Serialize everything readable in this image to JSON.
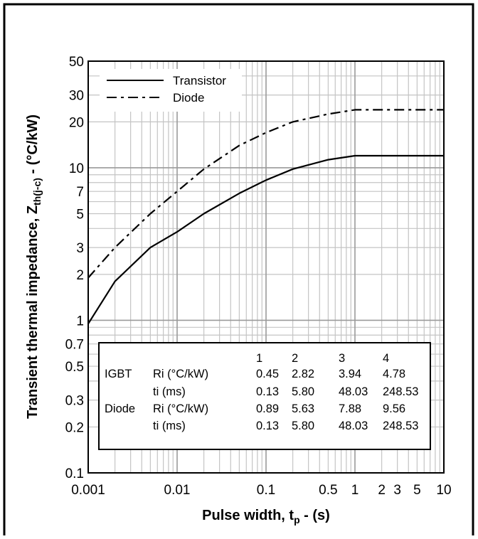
{
  "chart_data": {
    "type": "line",
    "xlabel": {
      "main": "Pulse width, t",
      "sub": "p",
      "tail": " - (s)"
    },
    "ylabel": {
      "main": "Transient thermal impedance, Z",
      "sub": "th(j-c)",
      "tail": " - (°C/kW)"
    },
    "x_scale": "log",
    "y_scale": "log",
    "xlim": [
      0.001,
      10
    ],
    "ylim": [
      0.1,
      50
    ],
    "grid": true,
    "x_ticks": [
      {
        "v": 0.001,
        "label": "0.001"
      },
      {
        "v": 0.01,
        "label": "0.01"
      },
      {
        "v": 0.1,
        "label": "0.1"
      },
      {
        "v": 0.5,
        "label": "0.5"
      },
      {
        "v": 1,
        "label": "1"
      },
      {
        "v": 2,
        "label": "2"
      },
      {
        "v": 3,
        "label": "3"
      },
      {
        "v": 5,
        "label": "5"
      },
      {
        "v": 10,
        "label": "10"
      }
    ],
    "y_ticks": [
      {
        "v": 0.1,
        "label": "0.1"
      },
      {
        "v": 0.2,
        "label": "0.2"
      },
      {
        "v": 0.3,
        "label": "0.3"
      },
      {
        "v": 0.5,
        "label": "0.5"
      },
      {
        "v": 0.7,
        "label": "0.7"
      },
      {
        "v": 1,
        "label": "1"
      },
      {
        "v": 2,
        "label": "2"
      },
      {
        "v": 3,
        "label": "3"
      },
      {
        "v": 5,
        "label": "5"
      },
      {
        "v": 7,
        "label": "7"
      },
      {
        "v": 10,
        "label": "10"
      },
      {
        "v": 20,
        "label": "20"
      },
      {
        "v": 30,
        "label": "30"
      },
      {
        "v": 50,
        "label": "50"
      }
    ],
    "legend_position": "top-left",
    "series": [
      {
        "name": "Transistor",
        "style": "solid",
        "x": [
          0.001,
          0.002,
          0.005,
          0.01,
          0.02,
          0.05,
          0.1,
          0.2,
          0.5,
          1,
          2,
          5,
          10
        ],
        "y": [
          0.95,
          1.8,
          3.0,
          3.8,
          5.0,
          6.8,
          8.3,
          9.8,
          11.3,
          12.0,
          12.0,
          12.0,
          12.0
        ]
      },
      {
        "name": "Diode",
        "style": "dashed",
        "x": [
          0.001,
          0.002,
          0.005,
          0.01,
          0.02,
          0.05,
          0.1,
          0.2,
          0.5,
          1,
          2,
          5,
          10
        ],
        "y": [
          1.9,
          3.0,
          5.0,
          7.0,
          9.8,
          14.0,
          17.0,
          20.0,
          22.5,
          24.0,
          24.0,
          24.0,
          24.0
        ]
      }
    ],
    "table": {
      "header": [
        "",
        "",
        "1",
        "2",
        "3",
        "4"
      ],
      "rows": [
        [
          "IGBT",
          "Ri (°C/kW)",
          "0.45",
          "2.82",
          "3.94",
          "4.78"
        ],
        [
          "",
          "ti (ms)",
          "0.13",
          "5.80",
          "48.03",
          "248.53"
        ],
        [
          "Diode",
          "Ri (°C/kW)",
          "0.89",
          "5.63",
          "7.88",
          "9.56"
        ],
        [
          "",
          "ti (ms)",
          "0.13",
          "5.80",
          "48.03",
          "248.53"
        ]
      ]
    }
  }
}
